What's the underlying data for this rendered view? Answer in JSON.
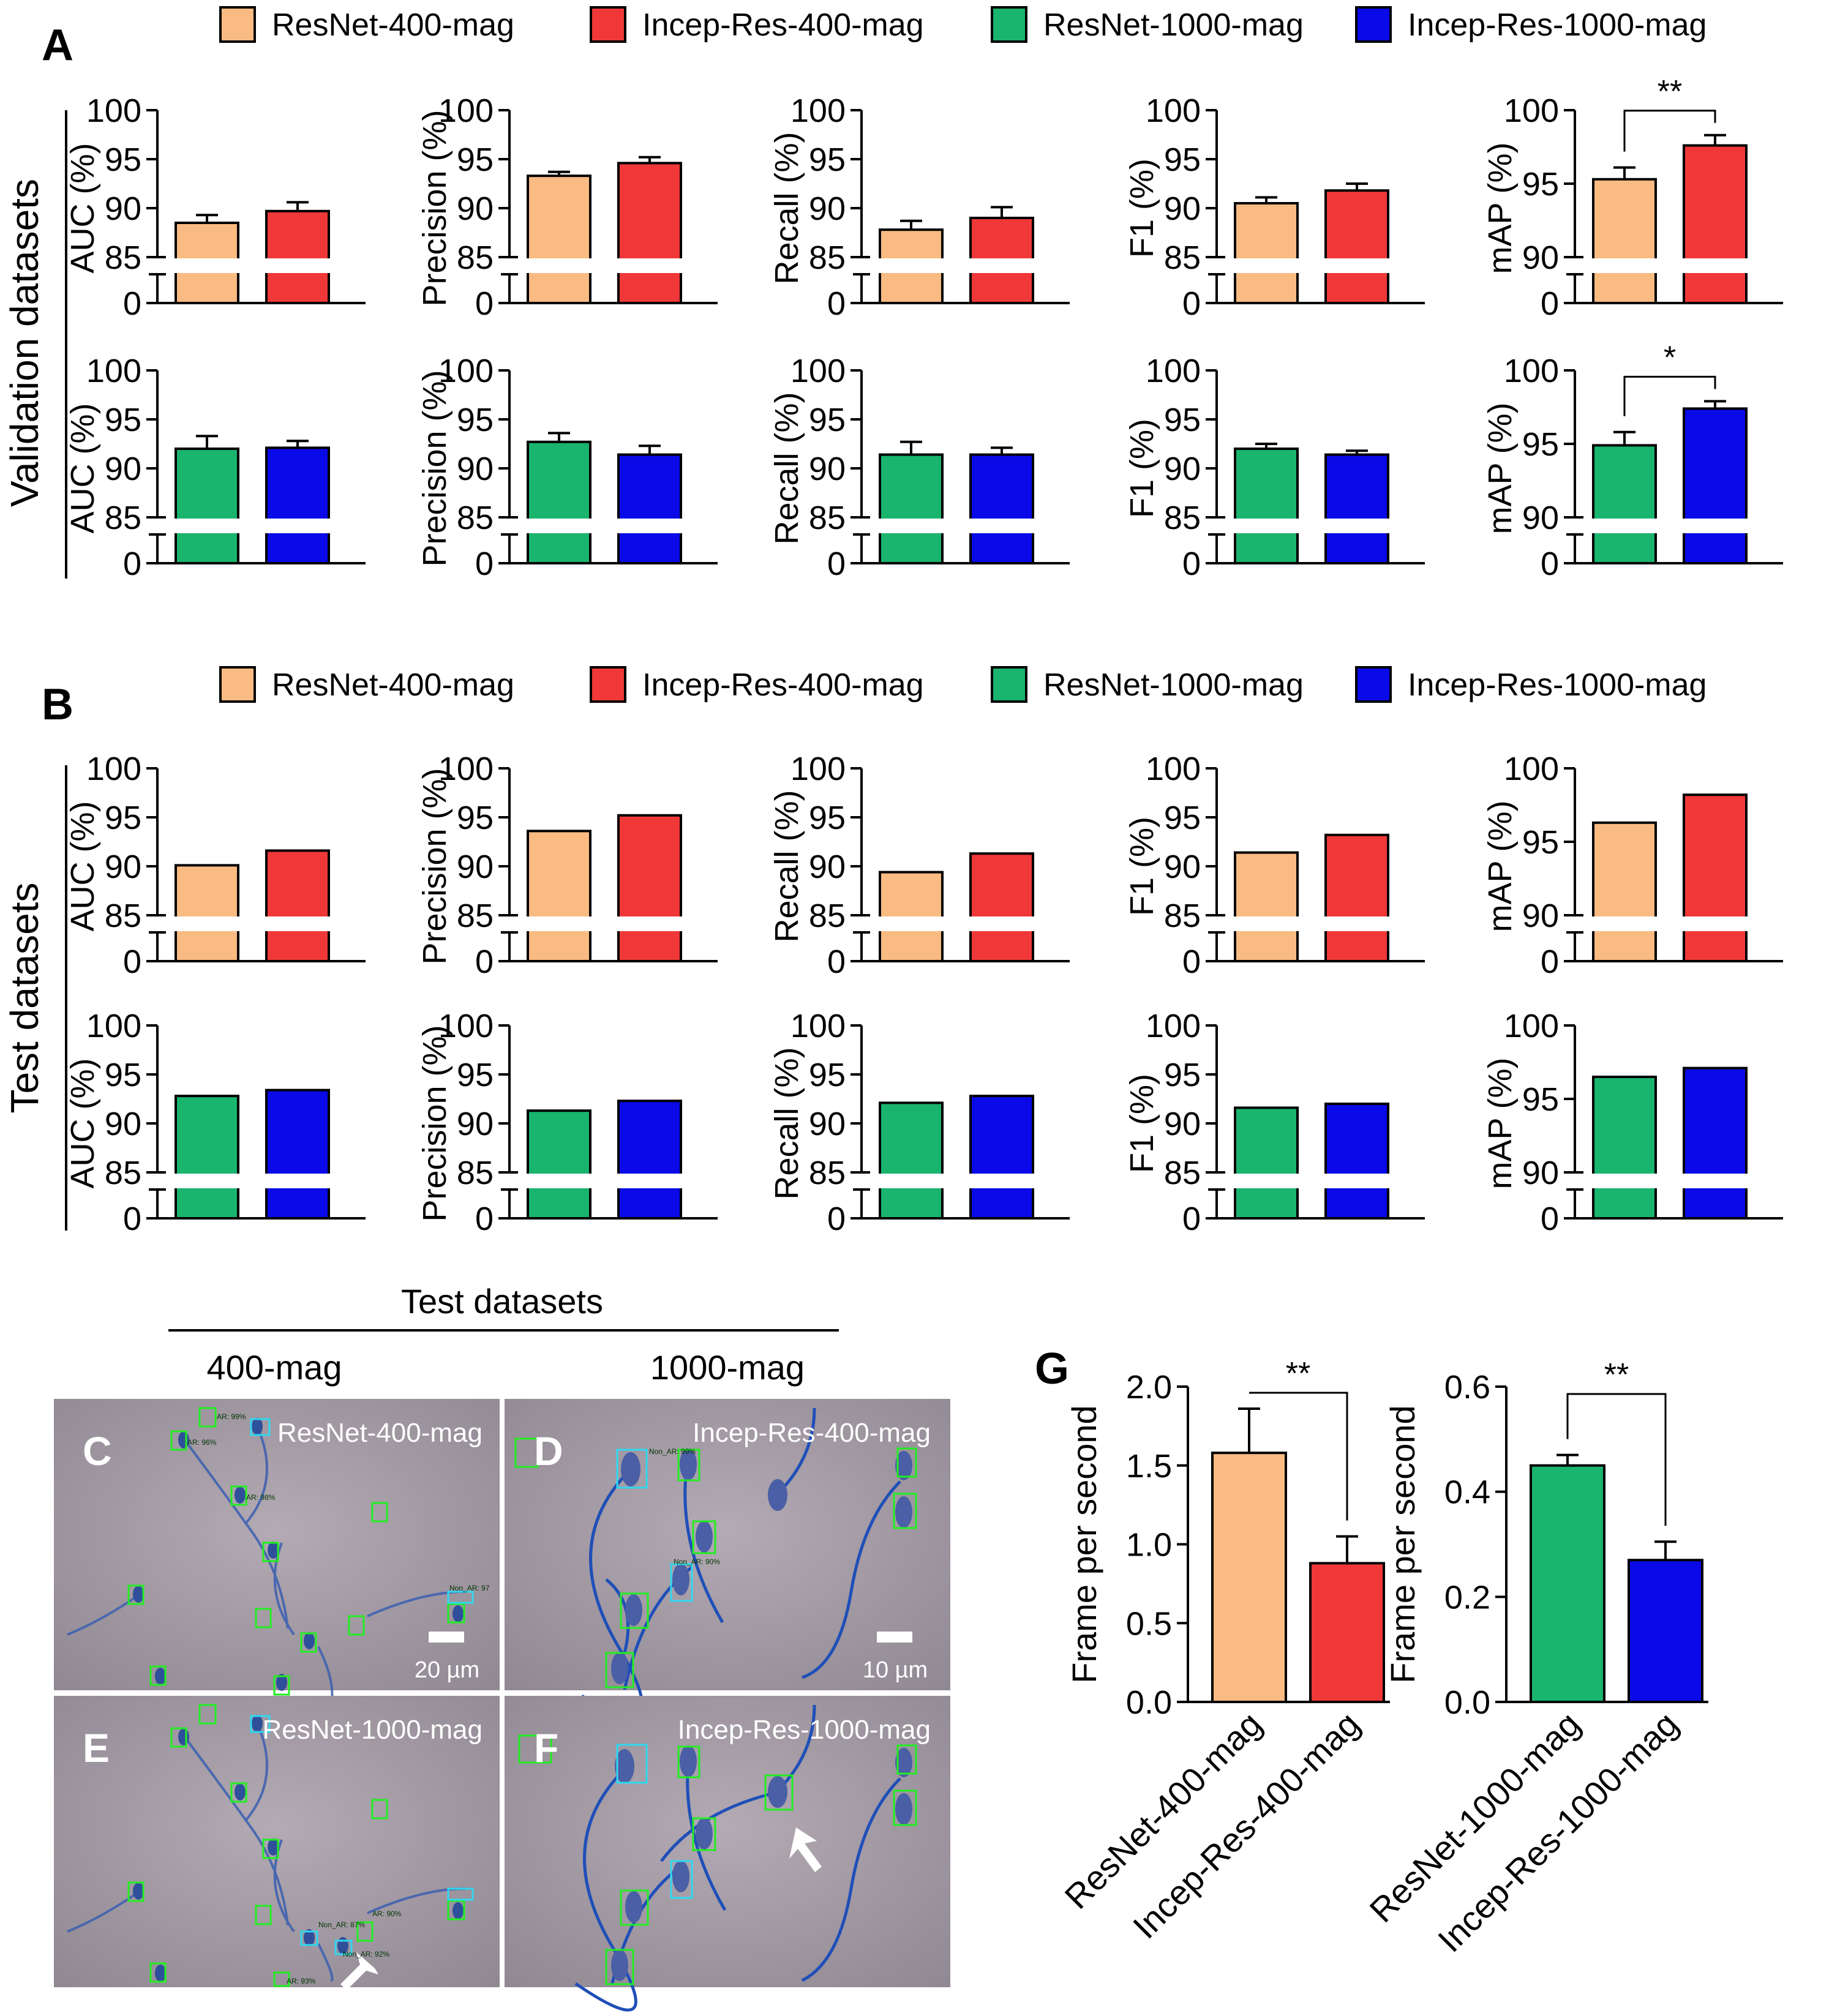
{
  "colors": {
    "resnet_400": "#f9bb82",
    "incep_400": "#f03838",
    "resnet_1000": "#19b46e",
    "incep_1000": "#0a0ae8",
    "axis": "#000000"
  },
  "legend": {
    "items": [
      "ResNet-400-mag",
      "Incep-Res-400-mag",
      "ResNet-1000-mag",
      "Incep-Res-1000-mag"
    ]
  },
  "panel_letters": {
    "a": "A",
    "b": "B",
    "c": "C",
    "d": "D",
    "e": "E",
    "f": "F",
    "g": "G"
  },
  "section_labels": {
    "validation": "Validation datasets",
    "test": "Test datasets"
  },
  "micrographs": {
    "header": "Test datasets",
    "col_400": "400-mag",
    "col_1000": "1000-mag",
    "c_title": "ResNet-400-mag",
    "d_title": "Incep-Res-400-mag",
    "e_title": "ResNet-1000-mag",
    "f_title": "Incep-Res-1000-mag",
    "scale_c": "20 µm",
    "scale_d": "10 µm",
    "box_labels": [
      "AR: 99%",
      "AR: 96%",
      "AR: 98%",
      "Non_AR: 99%",
      "Non_AR: 90%",
      "Non_AR: 97",
      "Non_AR: 87%",
      "Non_AR: 92%",
      "AR: 90%",
      "AR: 93%"
    ]
  },
  "chart_data": [
    {
      "id": "A-top",
      "type": "bar",
      "section": "validation",
      "metrics": [
        {
          "ylabel": "AUC (%)",
          "categories": [
            "ResNet-400-mag",
            "Incep-Res-400-mag"
          ],
          "values": [
            88.5,
            89.7
          ],
          "errors": [
            0.8,
            0.9
          ]
        },
        {
          "ylabel": "Precision (%)",
          "categories": [
            "ResNet-400-mag",
            "Incep-Res-400-mag"
          ],
          "values": [
            93.3,
            94.6
          ],
          "errors": [
            0.4,
            0.6
          ]
        },
        {
          "ylabel": "Recall (%)",
          "categories": [
            "ResNet-400-mag",
            "Incep-Res-400-mag"
          ],
          "values": [
            87.8,
            89.0
          ],
          "errors": [
            0.9,
            1.1
          ]
        },
        {
          "ylabel": "F1 (%)",
          "categories": [
            "ResNet-400-mag",
            "Incep-Res-400-mag"
          ],
          "values": [
            90.5,
            91.8
          ],
          "errors": [
            0.6,
            0.7
          ]
        },
        {
          "ylabel": "mAP (%)",
          "categories": [
            "ResNet-400-mag",
            "Incep-Res-400-mag"
          ],
          "values": [
            95.3,
            97.6
          ],
          "errors": [
            0.8,
            0.7
          ],
          "significance": "**"
        }
      ],
      "yticks": [
        0,
        85,
        90,
        95,
        100
      ],
      "mAP_yticks": [
        0,
        90,
        95,
        100
      ]
    },
    {
      "id": "A-bottom",
      "type": "bar",
      "section": "validation",
      "metrics": [
        {
          "ylabel": "AUC (%)",
          "categories": [
            "ResNet-1000-mag",
            "Incep-Res-1000-mag"
          ],
          "values": [
            92.0,
            92.1
          ],
          "errors": [
            1.3,
            0.7
          ]
        },
        {
          "ylabel": "Precision (%)",
          "categories": [
            "ResNet-1000-mag",
            "Incep-Res-1000-mag"
          ],
          "values": [
            92.7,
            91.4
          ],
          "errors": [
            0.9,
            0.9
          ]
        },
        {
          "ylabel": "Recall (%)",
          "categories": [
            "ResNet-1000-mag",
            "Incep-Res-1000-mag"
          ],
          "values": [
            91.4,
            91.4
          ],
          "errors": [
            1.3,
            0.7
          ]
        },
        {
          "ylabel": "F1 (%)",
          "categories": [
            "ResNet-1000-mag",
            "Incep-Res-1000-mag"
          ],
          "values": [
            92.0,
            91.4
          ],
          "errors": [
            0.5,
            0.4
          ]
        },
        {
          "ylabel": "mAP (%)",
          "categories": [
            "ResNet-1000-mag",
            "Incep-Res-1000-mag"
          ],
          "values": [
            94.9,
            97.4
          ],
          "errors": [
            0.9,
            0.5
          ],
          "significance": "*"
        }
      ]
    },
    {
      "id": "B-top",
      "type": "bar",
      "section": "test",
      "metrics": [
        {
          "ylabel": "AUC (%)",
          "categories": [
            "ResNet-400-mag",
            "Incep-Res-400-mag"
          ],
          "values": [
            90.1,
            91.6
          ]
        },
        {
          "ylabel": "Precision (%)",
          "categories": [
            "ResNet-400-mag",
            "Incep-Res-400-mag"
          ],
          "values": [
            93.6,
            95.2
          ]
        },
        {
          "ylabel": "Recall (%)",
          "categories": [
            "ResNet-400-mag",
            "Incep-Res-400-mag"
          ],
          "values": [
            89.4,
            91.3
          ]
        },
        {
          "ylabel": "F1 (%)",
          "categories": [
            "ResNet-400-mag",
            "Incep-Res-400-mag"
          ],
          "values": [
            91.4,
            93.2
          ]
        },
        {
          "ylabel": "mAP (%)",
          "categories": [
            "ResNet-400-mag",
            "Incep-Res-400-mag"
          ],
          "values": [
            96.3,
            98.2
          ]
        }
      ]
    },
    {
      "id": "B-bottom",
      "type": "bar",
      "section": "test",
      "metrics": [
        {
          "ylabel": "AUC (%)",
          "categories": [
            "ResNet-1000-mag",
            "Incep-Res-1000-mag"
          ],
          "values": [
            92.8,
            93.4
          ]
        },
        {
          "ylabel": "Precision (%)",
          "categories": [
            "ResNet-1000-mag",
            "Incep-Res-1000-mag"
          ],
          "values": [
            91.3,
            92.3
          ]
        },
        {
          "ylabel": "Recall (%)",
          "categories": [
            "ResNet-1000-mag",
            "Incep-Res-1000-mag"
          ],
          "values": [
            92.1,
            92.8
          ]
        },
        {
          "ylabel": "F1 (%)",
          "categories": [
            "ResNet-1000-mag",
            "Incep-Res-1000-mag"
          ],
          "values": [
            91.6,
            92.0
          ]
        },
        {
          "ylabel": "mAP (%)",
          "categories": [
            "ResNet-1000-mag",
            "Incep-Res-1000-mag"
          ],
          "values": [
            96.5,
            97.1
          ]
        }
      ]
    },
    {
      "id": "G-left",
      "type": "bar",
      "ylabel": "Frame per second",
      "categories": [
        "ResNet-400-mag",
        "Incep-Res-400-mag"
      ],
      "values": [
        1.58,
        0.88
      ],
      "errors": [
        0.28,
        0.17
      ],
      "ylim": [
        0,
        2.0
      ],
      "yticks": [
        "0.0",
        "0.5",
        "1.0",
        "1.5",
        "2.0"
      ],
      "significance": "**"
    },
    {
      "id": "G-right",
      "type": "bar",
      "ylabel": "Frame per second",
      "categories": [
        "ResNet-1000-mag",
        "Incep-Res-1000-mag"
      ],
      "values": [
        0.45,
        0.27
      ],
      "errors": [
        0.02,
        0.035
      ],
      "ylim": [
        0,
        0.6
      ],
      "yticks": [
        "0.0",
        "0.2",
        "0.4",
        "0.6"
      ],
      "significance": "**"
    }
  ]
}
